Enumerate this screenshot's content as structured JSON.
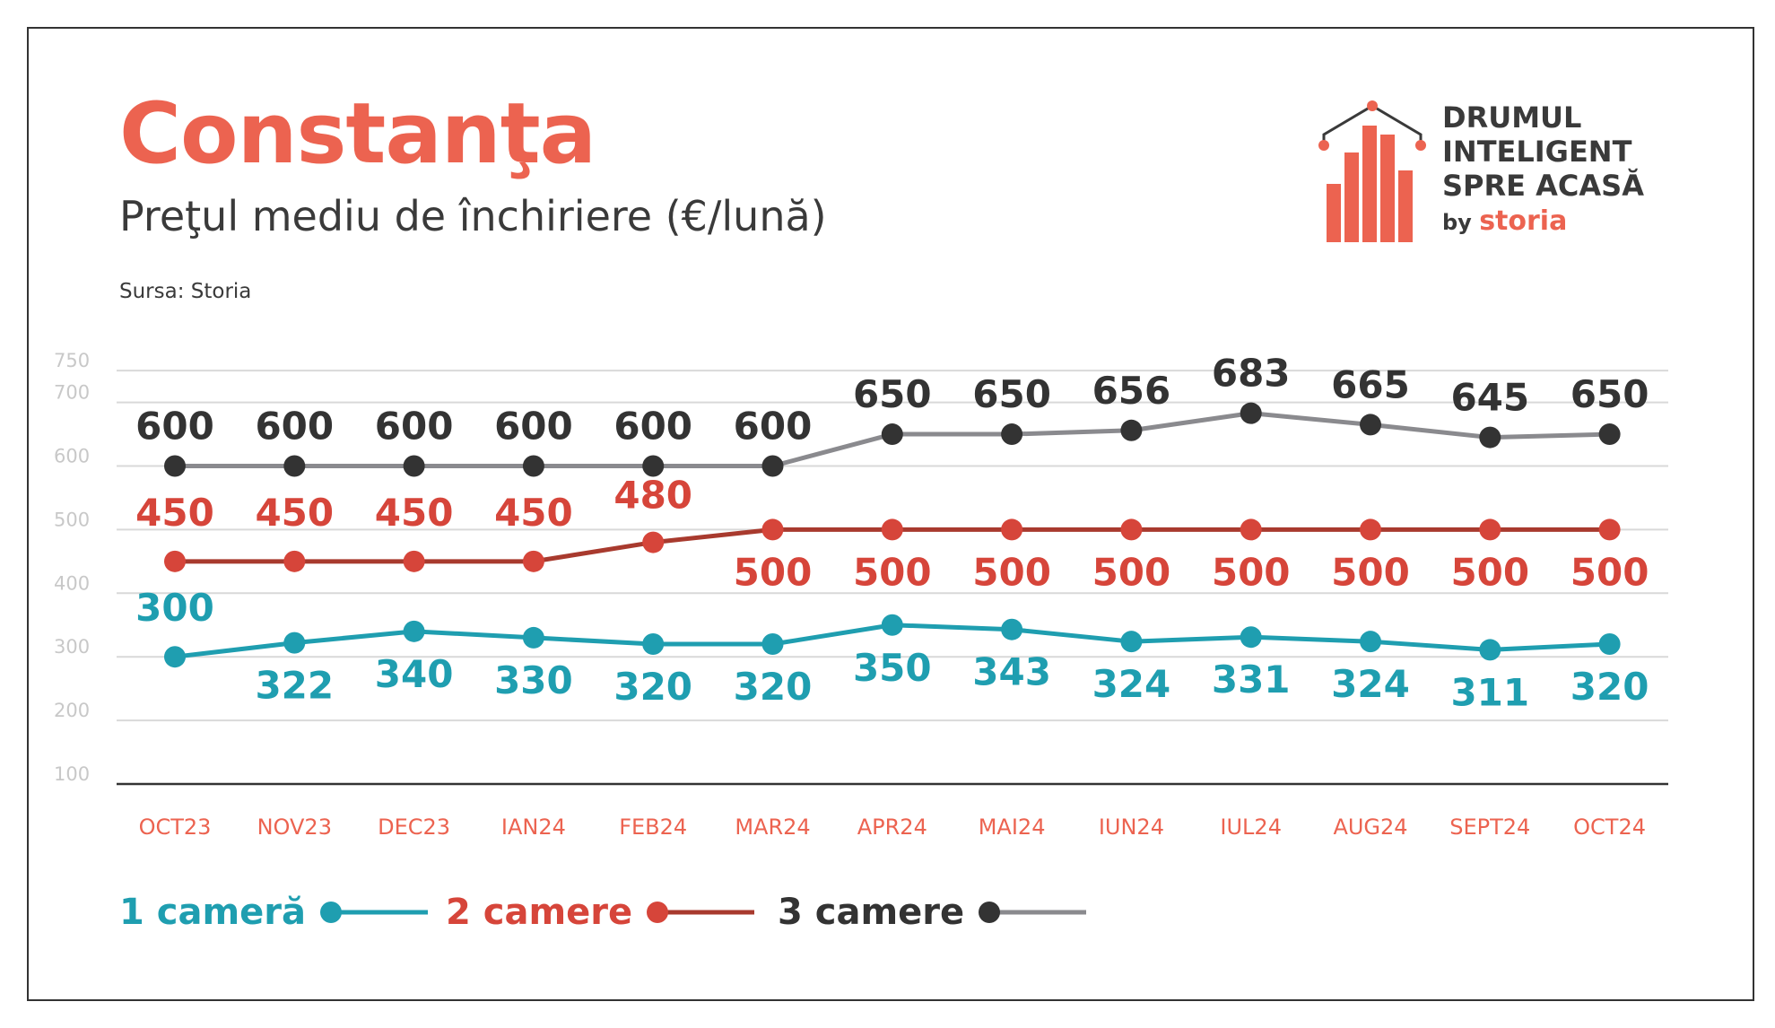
{
  "header": {
    "title": "Constanţa",
    "subtitle": "Preţul mediu de închiriere (€/lună)",
    "source": "Sursa: Storia"
  },
  "logo": {
    "line1": "DRUMUL",
    "line2": "INTELIGENT",
    "line3": "SPRE ACASĂ",
    "by": "by",
    "brand": "storia"
  },
  "colors": {
    "accent": "#ec6350",
    "text": "#3a3a3a",
    "one_room": "#1f9eb0",
    "two_rooms_line": "#a83a2e",
    "two_rooms_dot": "#d6453a",
    "three_rooms_line": "#8a8a8e",
    "three_rooms_dot": "#333333",
    "grid": "#d9d9d9",
    "tick": "#c8c8c8",
    "month_label": "#ec6350"
  },
  "chart_data": {
    "type": "line",
    "categories": [
      "OCT23",
      "NOV23",
      "DEC23",
      "IAN24",
      "FEB24",
      "MAR24",
      "APR24",
      "MAI24",
      "IUN24",
      "IUL24",
      "AUG24",
      "SEPT24",
      "OCT24"
    ],
    "yticks": [
      100,
      200,
      300,
      400,
      500,
      600,
      700,
      750
    ],
    "ylim": [
      100,
      750
    ],
    "grid": true,
    "legend_position": "bottom-left",
    "series": [
      {
        "name": "1 cameră",
        "values": [
          300,
          322,
          340,
          330,
          320,
          320,
          350,
          343,
          324,
          331,
          324,
          311,
          320
        ]
      },
      {
        "name": "2 camere",
        "values": [
          450,
          450,
          450,
          450,
          480,
          500,
          500,
          500,
          500,
          500,
          500,
          500,
          500
        ]
      },
      {
        "name": "3 camere",
        "values": [
          600,
          600,
          600,
          600,
          600,
          600,
          650,
          650,
          656,
          683,
          665,
          645,
          650
        ]
      }
    ]
  }
}
